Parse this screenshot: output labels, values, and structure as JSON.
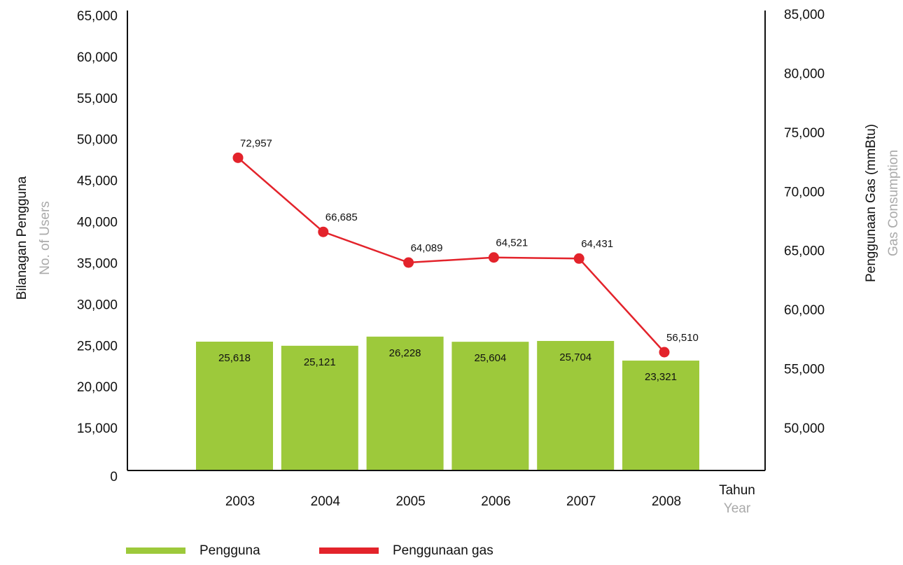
{
  "chart_data": {
    "type": "bar",
    "categories": [
      "2003",
      "2004",
      "2005",
      "2006",
      "2007",
      "2008"
    ],
    "x_label": "Tahun",
    "x_label_en": "Year",
    "y_label": "Bilanagan Pengguna",
    "y_label_en": "No. of Users",
    "y2_label": "Penggunaan Gas (mmBtu)",
    "y2_label_en": "Gas Consumption",
    "series": [
      {
        "name": "Pengguna",
        "type": "bar",
        "color": "#9dc93b",
        "values": [
          25618,
          25121,
          26228,
          25604,
          25704,
          23321
        ],
        "value_labels": [
          "25,618",
          "25,121",
          "26,228",
          "25,604",
          "25,704",
          "23,321"
        ]
      },
      {
        "name": "Penggunaan gas",
        "type": "line",
        "axis": "y2",
        "color": "#e3232b",
        "values": [
          72957,
          66685,
          64089,
          64521,
          64431,
          56510
        ],
        "value_labels": [
          "72,957",
          "66,685",
          "64,089",
          "64,521",
          "64,431",
          "56,510"
        ]
      }
    ],
    "ylim": [
      0,
      65000
    ],
    "yticks": [
      0,
      {
        "value": 15000,
        "label": "15,000"
      },
      {
        "value": 20000,
        "label": "20,000"
      },
      {
        "value": 25000,
        "label": "25,000"
      },
      {
        "value": 30000,
        "label": "30,000"
      },
      {
        "value": 35000,
        "label": "35,000"
      },
      {
        "value": 40000,
        "label": "40,000"
      },
      {
        "value": 45000,
        "label": "45,000"
      },
      {
        "value": 50000,
        "label": "50,000"
      },
      {
        "value": 55000,
        "label": "55,000"
      },
      {
        "value": 60000,
        "label": "60,000"
      },
      {
        "value": 65000,
        "label": "65,000"
      }
    ],
    "y2lim": [
      46500,
      85000
    ],
    "y2ticks": [
      {
        "value": 50000,
        "label": "50,000"
      },
      {
        "value": 55000,
        "label": "55,000"
      },
      {
        "value": 60000,
        "label": "60,000"
      },
      {
        "value": 65000,
        "label": "65,000"
      },
      {
        "value": 70000,
        "label": "70,000"
      },
      {
        "value": 75000,
        "label": "75,000"
      },
      {
        "value": 80000,
        "label": "80,000"
      },
      {
        "value": 85000,
        "label": "85,000"
      }
    ],
    "grid": false
  }
}
